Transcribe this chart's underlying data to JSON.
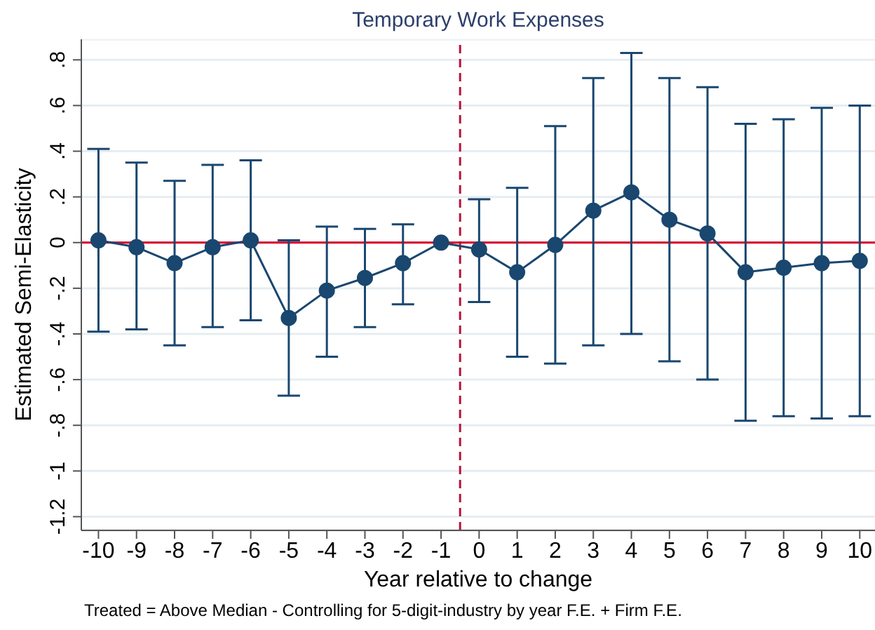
{
  "chart_data": {
    "type": "line",
    "title": "Temporary Work Expenses",
    "xlabel": "Year relative to change",
    "ylabel": "Estimated Semi-Elasticity",
    "annotations": [
      "Treated = Above Median - Controlling for 5-digit-industry by year F.E. + Firm  F.E."
    ],
    "x": [
      -10,
      -9,
      -8,
      -7,
      -6,
      -5,
      -4,
      -3,
      -2,
      -1,
      0,
      1,
      2,
      3,
      4,
      5,
      6,
      7,
      8,
      9,
      10
    ],
    "series": [
      {
        "color": "#1a476f",
        "values": [
          0.01,
          -0.02,
          -0.09,
          -0.02,
          0.01,
          -0.33,
          -0.21,
          -0.155,
          -0.09,
          0,
          -0.03,
          -0.13,
          -0.01,
          0.14,
          0.22,
          0.1,
          0.04,
          -0.13,
          -0.11,
          -0.09,
          -0.08
        ],
        "errors": [
          [
            -0.39,
            0.41
          ],
          [
            -0.38,
            0.35
          ],
          [
            -0.45,
            0.27
          ],
          [
            -0.37,
            0.34
          ],
          [
            -0.34,
            0.36
          ],
          [
            -0.67,
            0.01
          ],
          [
            -0.5,
            0.07
          ],
          [
            -0.37,
            0.06
          ],
          [
            -0.27,
            0.08
          ],
          null,
          [
            -0.26,
            0.19
          ],
          [
            -0.5,
            0.24
          ],
          [
            -0.53,
            0.51
          ],
          [
            -0.45,
            0.72
          ],
          [
            -0.4,
            0.83
          ],
          [
            -0.52,
            0.72
          ],
          [
            -0.6,
            0.68
          ],
          [
            -0.78,
            0.52
          ],
          [
            -0.76,
            0.54
          ],
          [
            -0.77,
            0.59
          ],
          [
            -0.76,
            0.6
          ]
        ]
      }
    ],
    "xlim": [
      -10.45,
      10.4
    ],
    "xticks": [
      -10,
      -9,
      -8,
      -7,
      -6,
      -5,
      -4,
      -3,
      -2,
      -1,
      0,
      1,
      2,
      3,
      4,
      5,
      6,
      7,
      8,
      9,
      10
    ],
    "ylim": [
      -1.26,
      0.89
    ],
    "yticks": [
      {
        "value": -1.2,
        "label": "-1.2"
      },
      -1,
      {
        "value": -0.8,
        "label": "-.8"
      },
      {
        "value": -0.6,
        "label": "-.6"
      },
      {
        "value": -0.4,
        "label": "-.4"
      },
      {
        "value": -0.2,
        "label": "-.2"
      },
      0,
      {
        "value": 0.2,
        "label": ".2"
      },
      {
        "value": 0.4,
        "label": ".4"
      },
      {
        "value": 0.6,
        "label": ".6"
      },
      {
        "value": 0.8,
        "label": ".8"
      }
    ],
    "ref_lines": [
      {
        "axis": "y",
        "value": 0,
        "color": "#d6002a",
        "line_style": "solid"
      },
      {
        "axis": "x",
        "value": -0.5,
        "color": "#b5143c",
        "line_style": "dashed"
      }
    ],
    "grid": "y",
    "marker": "circle",
    "line_style": "solid"
  }
}
